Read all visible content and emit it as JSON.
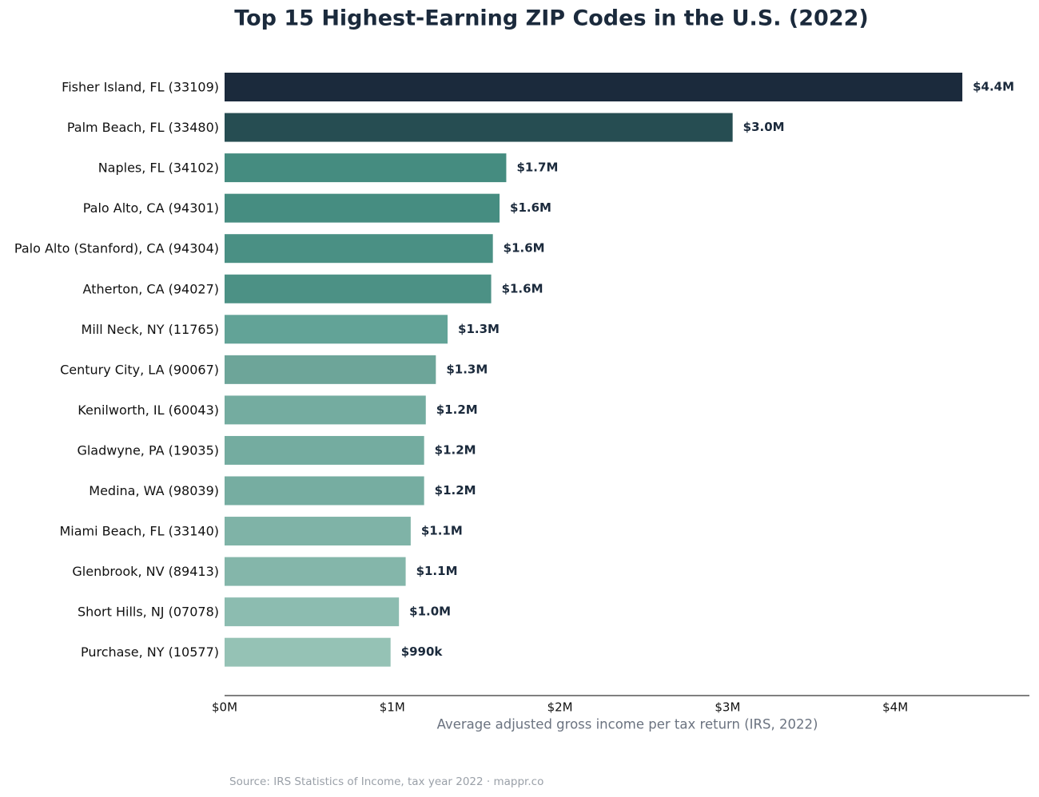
{
  "chart_data": {
    "type": "barh",
    "title": "Top 15 Highest-Earning ZIP Codes in the U.S. (2022)",
    "categories": [
      "Fisher Island, FL (33109)",
      "Palm Beach, FL (33480)",
      "Naples, FL (34102)",
      "Palo Alto, CA (94301)",
      "Palo Alto (Stanford), CA (94304)",
      "Atherton, CA (94027)",
      "Mill Neck, NY (11765)",
      "Century City, LA (90067)",
      "Kenilworth, IL (60043)",
      "Gladwyne, PA (19035)",
      "Medina, WA (98039)",
      "Miami Beach, FL (33140)",
      "Glenbrook, NV (89413)",
      "Short Hills, NJ (07078)",
      "Purchase, NY (10577)"
    ],
    "values": [
      4400000,
      3030000,
      1680000,
      1640000,
      1600000,
      1590000,
      1330000,
      1260000,
      1200000,
      1190000,
      1190000,
      1110000,
      1080000,
      1040000,
      990000
    ],
    "value_labels": [
      "$4.4M",
      "$3.0M",
      "$1.7M",
      "$1.6M",
      "$1.6M",
      "$1.6M",
      "$1.3M",
      "$1.3M",
      "$1.2M",
      "$1.2M",
      "$1.2M",
      "$1.1M",
      "$1.1M",
      "$1.0M",
      "$990k"
    ],
    "colors": [
      "#1b2a3c",
      "#264d52",
      "#458c80",
      "#468d81",
      "#4a9084",
      "#4c9185",
      "#62a397",
      "#6da599",
      "#74aca0",
      "#74aca0",
      "#76ada1",
      "#7fb3a7",
      "#84b6aa",
      "#8cbcb0",
      "#95c2b5"
    ],
    "xlim": [
      0,
      4800000
    ],
    "xticks": [
      {
        "value": 0,
        "label": "$0M"
      },
      {
        "value": 1000000,
        "label": "$1M"
      },
      {
        "value": 2000000,
        "label": "$2M"
      },
      {
        "value": 3000000,
        "label": "$3M"
      },
      {
        "value": 4000000,
        "label": "$4M"
      }
    ],
    "xlabel": "Average adjusted gross income per tax return (IRS, 2022)",
    "source": "Source: IRS Statistics of Income, tax year 2022 · mappr.co"
  }
}
